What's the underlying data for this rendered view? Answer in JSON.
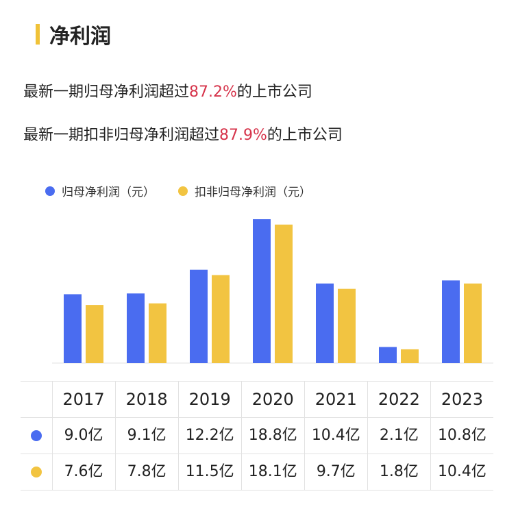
{
  "section": {
    "title": "净利润"
  },
  "headline1": {
    "prefix": "最新一期归母净利润超过",
    "pct": "87.2%",
    "suffix": "的上市公司"
  },
  "headline2": {
    "prefix": "最新一期扣非归母净利润超过",
    "pct": "87.9%",
    "suffix": "的上市公司"
  },
  "colors": {
    "series1": "#4a6cf0",
    "series2": "#f2c441",
    "accent_bar": "#f0c238",
    "highlight": "#d6344b"
  },
  "table": {
    "years": [
      "2017",
      "2018",
      "2019",
      "2020",
      "2021",
      "2022",
      "2023"
    ],
    "row1": [
      "9.0亿",
      "9.1亿",
      "12.2亿",
      "18.8亿",
      "10.4亿",
      "2.1亿",
      "10.8亿"
    ],
    "row2": [
      "7.6亿",
      "7.8亿",
      "11.5亿",
      "18.1亿",
      "9.7亿",
      "1.8亿",
      "10.4亿"
    ]
  },
  "chart_data": {
    "type": "bar",
    "categories": [
      "2017",
      "2018",
      "2019",
      "2020",
      "2021",
      "2022",
      "2023"
    ],
    "series": [
      {
        "name": "归母净利润（元）",
        "values": [
          9.0,
          9.1,
          12.2,
          18.8,
          10.4,
          2.1,
          10.8
        ]
      },
      {
        "name": "扣非归母净利润（元）",
        "values": [
          7.6,
          7.8,
          11.5,
          18.1,
          9.7,
          1.8,
          10.4
        ]
      }
    ],
    "title": "",
    "xlabel": "",
    "ylabel": "",
    "ylim": [
      0,
      18.8
    ],
    "grid": false,
    "legend": "top-left"
  }
}
